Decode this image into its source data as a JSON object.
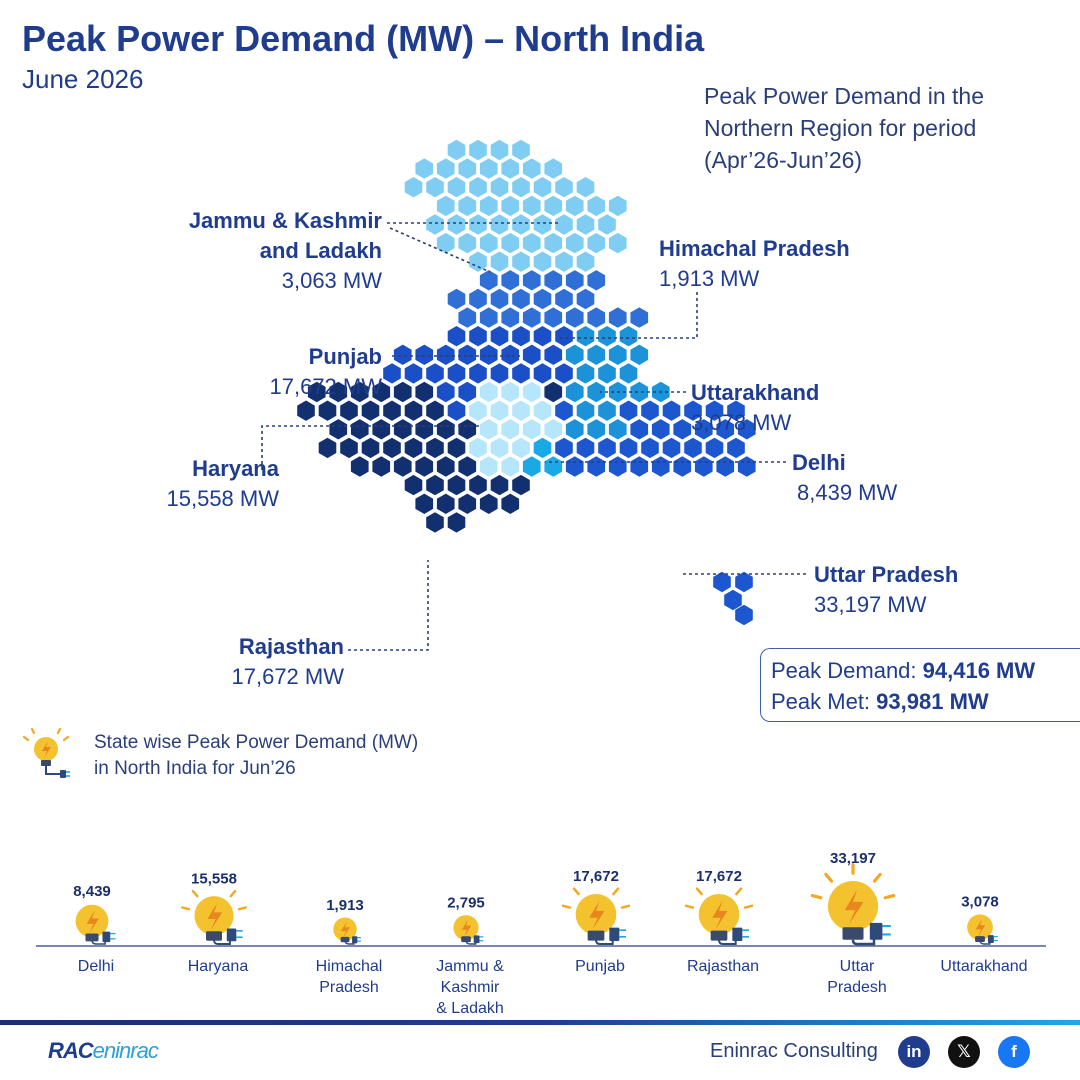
{
  "header": {
    "title": "Peak Power Demand (MW) – North India",
    "subtitle": "June 2026"
  },
  "map_caption": [
    "Peak Power Demand in the",
    "Northern Region for period",
    "(Apr’26-Jun’26)"
  ],
  "map_labels": [
    {
      "name_lines": [
        "Jammu & Kashmir",
        "and Ladakh"
      ],
      "value": "3,063 MW"
    },
    {
      "name_lines": [
        "Himachal Pradesh"
      ],
      "value": "1,913 MW"
    },
    {
      "name_lines": [
        "Punjab"
      ],
      "value": "17,672 MW"
    },
    {
      "name_lines": [
        "Uttarakhand"
      ],
      "value": "3,078 MW"
    },
    {
      "name_lines": [
        "Haryana"
      ],
      "value": "15,558 MW"
    },
    {
      "name_lines": [
        "Delhi"
      ],
      "value": "8,439 MW"
    },
    {
      "name_lines": [
        "Uttar Pradesh"
      ],
      "value": "33,197 MW"
    },
    {
      "name_lines": [
        "Rajasthan"
      ],
      "value": "17,672 MW"
    }
  ],
  "summary": {
    "demand_label": "Peak Demand:",
    "demand_value": "94,416 MW",
    "met_label": "Peak Met:",
    "met_value": "93,981 MW"
  },
  "bar_caption": [
    "State wise Peak Power Demand (MW)",
    "in North India for Jun’26"
  ],
  "chart_data": {
    "type": "bar",
    "categories": [
      "Delhi",
      "Haryana",
      "Himachal Pradesh",
      "Jammu & Kashmir & Ladakh",
      "Punjab",
      "Rajasthan",
      "Uttar Pradesh",
      "Uttarakhand"
    ],
    "category_lines": [
      [
        "Delhi"
      ],
      [
        "Haryana"
      ],
      [
        "Himachal",
        "Pradesh"
      ],
      [
        "Jammu &",
        "Kashmir",
        "& Ladakh"
      ],
      [
        "Punjab"
      ],
      [
        "Rajasthan"
      ],
      [
        "Uttar",
        "Pradesh"
      ],
      [
        "Uttarakhand"
      ]
    ],
    "values": [
      8439,
      15558,
      1913,
      2795,
      17672,
      17672,
      33197,
      3078
    ],
    "value_labels": [
      "8,439",
      "15,558",
      "1,913",
      "2,795",
      "17,672",
      "17,672",
      "33,197",
      "3,078"
    ],
    "title": "",
    "xlabel": "",
    "ylabel": ""
  },
  "colors": {
    "title": "#1f3c8f",
    "jk": "#7fcdf3",
    "hp": "#2f6fd6",
    "punjab": "#b6e6fb",
    "uttarakhand": "#1c93d8",
    "haryana": "#1b4fc7",
    "delhi": "#1aa9e6",
    "up": "#1d57cf",
    "rajasthan": "#12306f",
    "bulb": "#f5c22f"
  },
  "footer": {
    "logo_main": "RAC",
    "logo_sub": "eninrac",
    "company": "Eninrac Consulting",
    "social_icons": [
      "linkedin-icon",
      "x-icon",
      "facebook-icon"
    ],
    "social_glyphs": [
      "in",
      "𝕏",
      "f"
    ]
  }
}
